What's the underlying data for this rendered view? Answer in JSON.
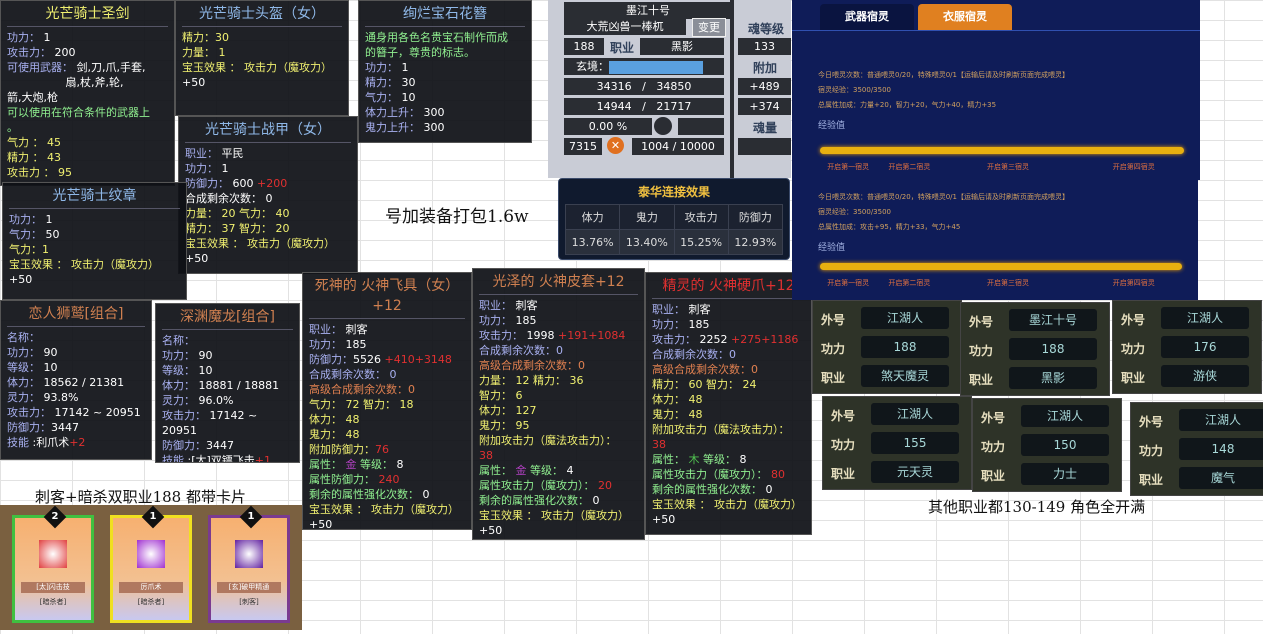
{
  "tooltips": [
    {
      "id": "sword",
      "title": "光芒骑士圣剑",
      "tc": "y",
      "lines": [
        [
          [
            "l",
            "功力："
          ],
          [
            "w",
            " 1"
          ]
        ],
        [
          [
            "l",
            "攻击力："
          ],
          [
            "w",
            " 200"
          ]
        ],
        [
          [
            "l",
            "可使用武器："
          ],
          [
            "w",
            " 剑,刀,爪,手套,"
          ]
        ],
        [
          [
            "w",
            "　　　　　 扇,杖,斧,轮,"
          ]
        ],
        [
          [
            "w",
            "箭,大炮,枪"
          ]
        ],
        [
          [
            "g",
            "可以使用在符合条件的武器上"
          ]
        ],
        [
          [
            "g",
            "。"
          ]
        ],
        [
          [
            "y",
            "气力 ： 45"
          ]
        ],
        [
          [
            "y",
            "精力 ： 43"
          ]
        ],
        [
          [
            "y",
            "攻击力 ： 95"
          ]
        ]
      ]
    },
    {
      "id": "helmet",
      "title": "光芒骑士头盔（女）",
      "tc": "b",
      "lines": [
        [
          [
            "y",
            "精力：30"
          ]
        ],
        [
          [
            "y",
            "力量： 1"
          ]
        ],
        [
          [
            "y",
            "宝玉效果 ： 攻击力（魔攻力）"
          ]
        ],
        [
          [
            "w",
            "+50"
          ]
        ]
      ]
    },
    {
      "id": "hairpin",
      "title": "绚烂宝石花簪",
      "tc": "b",
      "lines": [
        [
          [
            "g",
            "通身用各色名贵宝石制作而成"
          ]
        ],
        [
          [
            "g",
            "的簪子，尊贵的标志。"
          ]
        ],
        [
          [
            "l",
            "功力："
          ],
          [
            "w",
            " 1"
          ]
        ],
        [
          [
            "l",
            "精力："
          ],
          [
            "w",
            " 30"
          ]
        ],
        [
          [
            "l",
            "气力："
          ],
          [
            "w",
            " 10"
          ]
        ],
        [
          [
            "l",
            "体力上升："
          ],
          [
            "w",
            " 300"
          ]
        ],
        [
          [
            "l",
            "鬼力上升："
          ],
          [
            "w",
            " 300"
          ]
        ]
      ]
    },
    {
      "id": "armor",
      "title": "光芒骑士战甲（女）",
      "tc": "b",
      "lines": [
        [
          [
            "l",
            "职业："
          ],
          [
            "w",
            " 平民"
          ]
        ],
        [
          [
            "l",
            "功力："
          ],
          [
            "w",
            " 1"
          ]
        ],
        [
          [
            "l",
            "防御力："
          ],
          [
            "w",
            " 600 "
          ],
          [
            "r",
            "+200"
          ]
        ],
        [
          [
            "w",
            "合成剩余次数： 0"
          ]
        ],
        [
          [
            "y",
            "力量： 20 气力： 40"
          ]
        ],
        [
          [
            "y",
            "精力： 37 智力： 20"
          ]
        ],
        [
          [
            "y",
            "宝玉效果 ： 攻击力（魔攻力）"
          ]
        ],
        [
          [
            "w",
            "+50"
          ]
        ]
      ]
    },
    {
      "id": "emblem",
      "title": "光芒骑士纹章",
      "tc": "b",
      "lines": [
        [
          [
            "l",
            "功力："
          ],
          [
            "w",
            " 1"
          ]
        ],
        [
          [
            "l",
            "气力："
          ],
          [
            "w",
            " 50"
          ]
        ],
        [
          [
            "y",
            "气力：1"
          ]
        ],
        [
          [
            "y",
            "宝玉效果 ： 攻击力（魔攻力）"
          ]
        ],
        [
          [
            "w",
            "+50"
          ]
        ]
      ]
    },
    {
      "id": "pet1",
      "title": "恋人狮鹫[组合]",
      "tc": "t",
      "lines": [
        [
          [
            "l",
            "名称："
          ]
        ],
        [
          [
            "l",
            "功力："
          ],
          [
            "w",
            " 90"
          ]
        ],
        [
          [
            "l",
            "等级："
          ],
          [
            "w",
            " 10"
          ]
        ],
        [
          [
            "l",
            "体力："
          ],
          [
            "w",
            " 18562 / 21381"
          ]
        ],
        [
          [
            "l",
            "灵力："
          ],
          [
            "w",
            " 93.8%"
          ]
        ],
        [
          [
            "l",
            "攻击力："
          ],
          [
            "w",
            " 17142 ~ 20951"
          ]
        ],
        [
          [
            "l",
            "防御力："
          ],
          [
            "w",
            "3447"
          ]
        ],
        [
          [
            "l",
            "技能 "
          ],
          [
            "w",
            ":利爪术"
          ],
          [
            "r",
            "+2"
          ]
        ]
      ]
    },
    {
      "id": "pet2",
      "title": "深渊魔龙[组合]",
      "tc": "t",
      "lines": [
        [
          [
            "l",
            "名称："
          ]
        ],
        [
          [
            "l",
            "功力："
          ],
          [
            "w",
            " 90"
          ]
        ],
        [
          [
            "l",
            "等级："
          ],
          [
            "w",
            " 10"
          ]
        ],
        [
          [
            "l",
            "体力："
          ],
          [
            "w",
            " 18881 / 18881"
          ]
        ],
        [
          [
            "l",
            "灵力："
          ],
          [
            "w",
            " 96.0%"
          ]
        ],
        [
          [
            "l",
            "攻击力："
          ],
          [
            "w",
            " 17142 ~ 20951"
          ]
        ],
        [
          [
            "l",
            "防御力："
          ],
          [
            "w",
            "3447"
          ]
        ],
        [
          [
            "l",
            "技能 "
          ],
          [
            "w",
            ":[太]双镖飞击"
          ],
          [
            "r",
            "+1"
          ]
        ]
      ]
    },
    {
      "id": "fly",
      "title": "死神的 火神飞具（女）+12",
      "tc": "t",
      "lines": [
        [
          [
            "l",
            "职业："
          ],
          [
            "w",
            " 刺客"
          ]
        ],
        [
          [
            "l",
            "功力："
          ],
          [
            "w",
            " 185"
          ]
        ],
        [
          [
            "l",
            "防御力："
          ],
          [
            "w",
            "5526 "
          ],
          [
            "r",
            "+410+3148"
          ]
        ],
        [
          [
            "l",
            "合成剩余次数： 0"
          ]
        ],
        [
          [
            "o",
            "高级合成剩余次数：0"
          ]
        ],
        [
          [
            "y",
            "气力： 72  智力： 18"
          ]
        ],
        [
          [
            "y",
            "体力： 48"
          ]
        ],
        [
          [
            "y",
            "鬼力： 48"
          ]
        ],
        [
          [
            "y",
            "附加防御力："
          ],
          [
            "r",
            "76"
          ]
        ],
        [
          [
            "g",
            "属性： "
          ],
          [
            "p",
            "金"
          ],
          [
            "g",
            " 等级： "
          ],
          [
            "w",
            "8"
          ]
        ],
        [
          [
            "g",
            "属性防御力： "
          ],
          [
            "r",
            "240"
          ]
        ],
        [
          [
            "g",
            "剩余的属性强化次数： "
          ],
          [
            "w",
            "0"
          ]
        ],
        [
          [
            "y",
            "宝玉效果 ： 攻击力（魔攻力）"
          ]
        ],
        [
          [
            "w",
            "+50"
          ]
        ]
      ]
    },
    {
      "id": "glove",
      "title": "光泽的 火神皮套+12",
      "tc": "t",
      "lines": [
        [
          [
            "l",
            "职业："
          ],
          [
            "w",
            " 刺客"
          ]
        ],
        [
          [
            "l",
            "功力："
          ],
          [
            "w",
            " 185"
          ]
        ],
        [
          [
            "l",
            "攻击力："
          ],
          [
            "w",
            " 1998 "
          ],
          [
            "r",
            "+191+1084"
          ]
        ],
        [
          [
            "l",
            "合成剩余次数：0"
          ]
        ],
        [
          [
            "o",
            "高级合成剩余次数：0"
          ]
        ],
        [
          [
            "y",
            "力量： 12  精力： 36"
          ]
        ],
        [
          [
            "y",
            "智力： 6"
          ]
        ],
        [
          [
            "y",
            "体力： 127"
          ]
        ],
        [
          [
            "y",
            "鬼力： 95"
          ]
        ],
        [
          [
            "y",
            "附加攻击力（魔法攻击力）："
          ]
        ],
        [
          [
            "r",
            "38"
          ]
        ],
        [
          [
            "g",
            "属性： "
          ],
          [
            "p",
            "金"
          ],
          [
            "g",
            " 等级： "
          ],
          [
            "w",
            "4"
          ]
        ],
        [
          [
            "g",
            "属性攻击力（魔攻力）： "
          ],
          [
            "r",
            "20"
          ]
        ],
        [
          [
            "g",
            "剩余的属性强化次数： "
          ],
          [
            "w",
            "0"
          ]
        ],
        [
          [
            "y",
            "宝玉效果 ： 攻击力（魔攻力）"
          ]
        ],
        [
          [
            "w",
            "+50"
          ]
        ]
      ]
    },
    {
      "id": "claw",
      "title": "精灵的 火神硬爪+12",
      "tc": "r",
      "lines": [
        [
          [
            "l",
            "职业："
          ],
          [
            "w",
            " 刺客"
          ]
        ],
        [
          [
            "l",
            "功力："
          ],
          [
            "w",
            " 185"
          ]
        ],
        [
          [
            "l",
            "攻击力："
          ],
          [
            "w",
            " 2252 "
          ],
          [
            "r",
            "+275+1186"
          ]
        ],
        [
          [
            "l",
            "合成剩余次数：0"
          ]
        ],
        [
          [
            "o",
            "高级合成剩余次数：0"
          ]
        ],
        [
          [
            "y",
            "精力： 60  智力： 24"
          ]
        ],
        [
          [
            "y",
            "体力： 48"
          ]
        ],
        [
          [
            "y",
            "鬼力： 48"
          ]
        ],
        [
          [
            "y",
            "附加攻击力（魔法攻击力）："
          ]
        ],
        [
          [
            "r",
            "38"
          ]
        ],
        [
          [
            "g",
            "属性： "
          ],
          [
            "gr",
            "木"
          ],
          [
            "g",
            " 等级： "
          ],
          [
            "w",
            "8"
          ]
        ],
        [
          [
            "g",
            "属性攻击力（魔攻力）： "
          ],
          [
            "r",
            "80"
          ]
        ],
        [
          [
            "g",
            "剩余的属性强化次数： "
          ],
          [
            "w",
            "0"
          ]
        ],
        [
          [
            "y",
            "宝玉效果 ： 攻击力（魔攻力）"
          ]
        ],
        [
          [
            "w",
            "+50"
          ]
        ]
      ]
    }
  ],
  "character": {
    "name": "墨江十号",
    "nickname": "大荒凶兽一棒杌",
    "change_button": "变更",
    "level": "188",
    "job_label": "职业",
    "job": "黑影",
    "realm_label": "玄境：",
    "hp": "34316",
    "hp_max": "34850",
    "mp": "14944",
    "mp_max": "21717",
    "percent": "0.00 %",
    "points": "7315",
    "exp": "1004",
    "exp_max": "10000",
    "soul_level_label": "魂等级",
    "soul_level": "133",
    "bonus_label": "附加",
    "bonus1": "+489",
    "bonus2": "+374",
    "soul_amount_label": "魂量",
    "slash": "/"
  },
  "taihua": {
    "title": "泰华连接效果",
    "headers": [
      "体力",
      "鬼力",
      "攻击力",
      "防御力"
    ],
    "values": [
      "13.76%",
      "13.40%",
      "15.25%",
      "12.93%"
    ]
  },
  "captions": {
    "pack": "号加装备打包1.6w",
    "dual": "刺客+暗杀双职业188 都带卡片",
    "others": "其他职业都130-149   角色全开满"
  },
  "spirit": {
    "tabs": [
      "武器宿灵",
      "衣服宿灵"
    ],
    "active_tab": 1,
    "exp_label": "经验值",
    "milestones": [
      "开启第一宿灵",
      "开启第二宿灵",
      "开启第三宿灵",
      "开启第四宿灵"
    ],
    "panels": [
      {
        "daily": "今日喂灵次数：普通喂灵0/20，特殊喂灵0/1【运输后请及时刷新页面完成喂灵】",
        "exp": "宿灵经验：3500/3500",
        "bonus": "总属性加成：力量+20，智力+20，气力+40，精力+35",
        "progress": 1.0
      },
      {
        "daily": "今日喂灵次数：普通喂灵0/20，特殊喂灵0/1【运输后请及时刷新页面完成喂灵】",
        "exp": "宿灵经验：3500/3500",
        "bonus": "总属性加成：攻击+95，精力+33，气力+45",
        "progress": 1.0
      }
    ]
  },
  "characters": {
    "labels": [
      "外号",
      "功力",
      "职业"
    ],
    "list": [
      {
        "nick": "江湖人",
        "power": "188",
        "job": "煞天魔灵"
      },
      {
        "nick": "墨江十号",
        "power": "188",
        "job": "黑影"
      },
      {
        "nick": "江湖人",
        "power": "176",
        "job": "游侠"
      },
      {
        "nick": "江湖人",
        "power": "155",
        "job": "元天灵"
      },
      {
        "nick": "江湖人",
        "power": "150",
        "job": "力士"
      },
      {
        "nick": "江湖人",
        "power": "148",
        "job": "魔气"
      }
    ]
  },
  "cards": [
    {
      "count": "2",
      "name": "[太]闪击技",
      "class": "[暗杀者]",
      "border": "#40c040",
      "icon": "#e04040"
    },
    {
      "count": "1",
      "name": "厉爪术",
      "class": "[暗杀者]",
      "border": "#f0e020",
      "icon": "#a030d0"
    },
    {
      "count": "1",
      "name": "[玄]破甲精通",
      "class": "[刺客]",
      "border": "#7a3a90",
      "icon": "#6020a0"
    }
  ]
}
